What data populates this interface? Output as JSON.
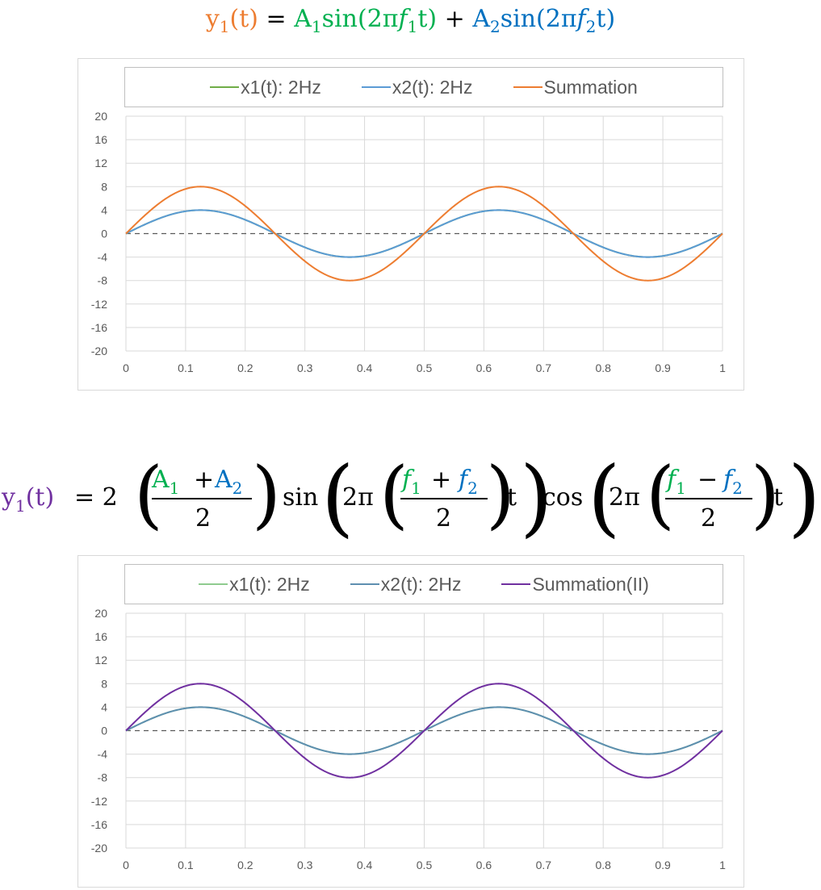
{
  "colors": {
    "x1": "#70AD47",
    "x2": "#5B9BD5",
    "sum": "#ED7D31",
    "sum2": "#7030A0",
    "x2_bottom": "#5E8FB0",
    "x1_bottom": "#8FCB8F",
    "zero_line": "#595959",
    "grid": "#D9D9D9",
    "formula_orange": "#ED7D31",
    "formula_green": "#00B050",
    "formula_blue": "#0070C0",
    "formula_purple": "#7030A0"
  },
  "formula1": {
    "lhs_y": "y",
    "lhs_sub": "1",
    "lhs_arg": "(t)",
    "eq": "=",
    "term1": "A",
    "term1_sub": "1",
    "term1_fn": "sin(2π",
    "term1_f": "f",
    "term1_f_sub": "1",
    "term1_end": "t)",
    "plus": "+",
    "term2": "A",
    "term2_sub": "2",
    "term2_fn": "sin(2π",
    "term2_f": "f",
    "term2_f_sub": "2",
    "term2_end": "t)"
  },
  "formula2": {
    "lhs_y": "y",
    "lhs_sub": "1",
    "lhs_arg": "(t)",
    "eq": "= 2",
    "a1": "A",
    "a1_sub": "1",
    "plus": "+",
    "a2": "A",
    "a2_sub": "2",
    "den": "2",
    "sin": "sin",
    "two_pi": "2π",
    "f1": "f",
    "f1_sub": "1",
    "f2": "f",
    "f2_sub": "2",
    "minus": "−",
    "t": "t",
    "cos": "cos"
  },
  "chart_data": [
    {
      "type": "line",
      "title": "",
      "xlabel": "",
      "ylabel": "",
      "xlim": [
        0,
        1
      ],
      "ylim": [
        -20,
        20
      ],
      "x_ticks": [
        "0",
        "0.1",
        "0.2",
        "0.3",
        "0.4",
        "0.5",
        "0.6",
        "0.7",
        "0.8",
        "0.9",
        "1"
      ],
      "y_ticks": [
        "20",
        "16",
        "12",
        "8",
        "4",
        "0",
        "-4",
        "-8",
        "-12",
        "-16",
        "-20"
      ],
      "grid": true,
      "legend_position": "top",
      "legend": [
        "x1(t): 2Hz",
        "x2(t): 2Hz",
        "Summation"
      ],
      "series": [
        {
          "name": "x1(t): 2Hz",
          "amplitude": 4,
          "frequency": 2,
          "color_key": "x1"
        },
        {
          "name": "x2(t): 2Hz",
          "amplitude": 4,
          "frequency": 2,
          "color_key": "x2"
        },
        {
          "name": "Summation",
          "amplitude": 8,
          "frequency": 2,
          "color_key": "sum"
        }
      ],
      "x": [
        0,
        0.0625,
        0.125,
        0.1875,
        0.25,
        0.3125,
        0.375,
        0.4375,
        0.5,
        0.5625,
        0.625,
        0.6875,
        0.75,
        0.8125,
        0.875,
        0.9375,
        1
      ],
      "values_sum": [
        0,
        5.66,
        8,
        5.66,
        0,
        -5.66,
        -8,
        -5.66,
        0,
        5.66,
        8,
        5.66,
        0,
        -5.66,
        -8,
        -5.66,
        0
      ],
      "values_x": [
        0,
        2.83,
        4,
        2.83,
        0,
        -2.83,
        -4,
        -2.83,
        0,
        2.83,
        4,
        2.83,
        0,
        -2.83,
        -4,
        -2.83,
        0
      ]
    },
    {
      "type": "line",
      "title": "",
      "xlabel": "",
      "ylabel": "",
      "xlim": [
        0,
        1
      ],
      "ylim": [
        -20,
        20
      ],
      "x_ticks": [
        "0",
        "0.1",
        "0.2",
        "0.3",
        "0.4",
        "0.5",
        "0.6",
        "0.7",
        "0.8",
        "0.9",
        "1"
      ],
      "y_ticks": [
        "20",
        "16",
        "12",
        "8",
        "4",
        "0",
        "-4",
        "-8",
        "-12",
        "-16",
        "-20"
      ],
      "grid": true,
      "legend_position": "top",
      "legend": [
        "x1(t): 2Hz",
        "x2(t): 2Hz",
        "Summation(II)"
      ],
      "series": [
        {
          "name": "x1(t): 2Hz",
          "amplitude": 4,
          "frequency": 2,
          "color_key": "x1_bottom"
        },
        {
          "name": "x2(t): 2Hz",
          "amplitude": 4,
          "frequency": 2,
          "color_key": "x2_bottom"
        },
        {
          "name": "Summation(II)",
          "amplitude": 8,
          "frequency": 2,
          "color_key": "sum2"
        }
      ],
      "x": [
        0,
        0.0625,
        0.125,
        0.1875,
        0.25,
        0.3125,
        0.375,
        0.4375,
        0.5,
        0.5625,
        0.625,
        0.6875,
        0.75,
        0.8125,
        0.875,
        0.9375,
        1
      ],
      "values_sum": [
        0,
        5.66,
        8,
        5.66,
        0,
        -5.66,
        -8,
        -5.66,
        0,
        5.66,
        8,
        5.66,
        0,
        -5.66,
        -8,
        -5.66,
        0
      ],
      "values_x": [
        0,
        2.83,
        4,
        2.83,
        0,
        -2.83,
        -4,
        -2.83,
        0,
        2.83,
        4,
        2.83,
        0,
        -2.83,
        -4,
        -2.83,
        0
      ]
    }
  ]
}
